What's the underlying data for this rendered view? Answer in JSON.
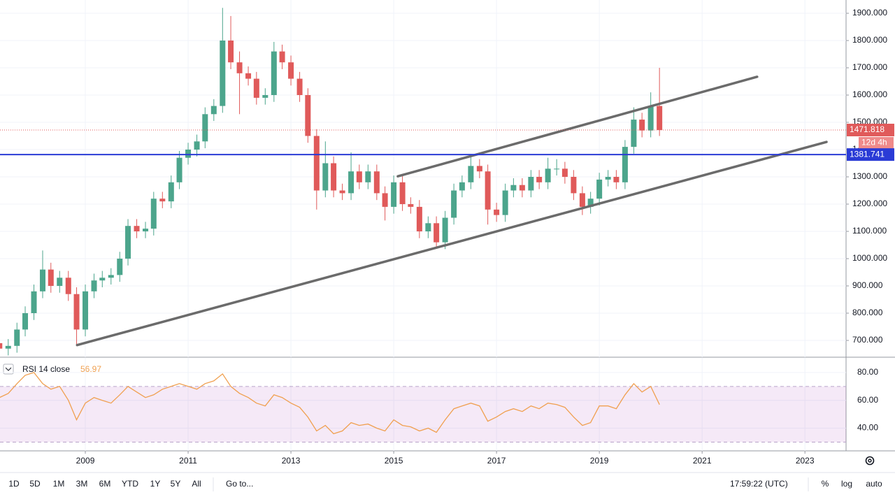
{
  "chart_data": {
    "type": "candlestick",
    "candles": {
      "x": [
        2007.33,
        2007.5,
        2007.67,
        2007.83,
        2008,
        2008.17,
        2008.33,
        2008.5,
        2008.67,
        2008.83,
        2009,
        2009.17,
        2009.33,
        2009.5,
        2009.67,
        2009.83,
        2010,
        2010.17,
        2010.33,
        2010.5,
        2010.67,
        2010.83,
        2011,
        2011.17,
        2011.33,
        2011.5,
        2011.67,
        2011.83,
        2012,
        2012.17,
        2012.33,
        2012.5,
        2012.67,
        2012.83,
        2013,
        2013.17,
        2013.33,
        2013.5,
        2013.67,
        2013.83,
        2014,
        2014.17,
        2014.33,
        2014.5,
        2014.67,
        2014.83,
        2015,
        2015.17,
        2015.33,
        2015.5,
        2015.67,
        2015.83,
        2016,
        2016.17,
        2016.33,
        2016.5,
        2016.67,
        2016.83,
        2017,
        2017.17,
        2017.33,
        2017.5,
        2017.67,
        2017.83,
        2018,
        2018.17,
        2018.33,
        2018.5,
        2018.67,
        2018.83,
        2019,
        2019.17,
        2019.33,
        2019.5,
        2019.67,
        2019.83,
        2020,
        2020.17
      ],
      "open": [
        690,
        670,
        680,
        740,
        800,
        880,
        960,
        900,
        930,
        870,
        740,
        880,
        920,
        930,
        940,
        1000,
        1120,
        1100,
        1110,
        1220,
        1210,
        1280,
        1370,
        1400,
        1430,
        1530,
        1560,
        1800,
        1720,
        1680,
        1660,
        1590,
        1600,
        1760,
        1720,
        1660,
        1600,
        1450,
        1250,
        1350,
        1250,
        1240,
        1320,
        1280,
        1320,
        1240,
        1190,
        1280,
        1200,
        1190,
        1100,
        1130,
        1060,
        1150,
        1250,
        1280,
        1340,
        1320,
        1180,
        1160,
        1250,
        1270,
        1250,
        1300,
        1280,
        1330,
        1330,
        1300,
        1240,
        1190,
        1220,
        1290,
        1300,
        1280,
        1410,
        1510,
        1470,
        1560
      ],
      "high": [
        710,
        705,
        765,
        825,
        905,
        1030,
        985,
        955,
        955,
        895,
        905,
        945,
        955,
        965,
        1025,
        1145,
        1145,
        1135,
        1245,
        1245,
        1305,
        1395,
        1425,
        1455,
        1555,
        1585,
        1920,
        1890,
        1760,
        1705,
        1685,
        1625,
        1795,
        1785,
        1745,
        1685,
        1625,
        1475,
        1430,
        1375,
        1275,
        1390,
        1345,
        1345,
        1345,
        1265,
        1305,
        1305,
        1225,
        1215,
        1155,
        1155,
        1175,
        1275,
        1305,
        1375,
        1365,
        1345,
        1205,
        1275,
        1295,
        1295,
        1325,
        1325,
        1370,
        1365,
        1355,
        1325,
        1265,
        1245,
        1315,
        1325,
        1325,
        1435,
        1555,
        1535,
        1610,
        1700
      ],
      "low": [
        650,
        645,
        655,
        715,
        775,
        855,
        875,
        875,
        845,
        680,
        715,
        855,
        895,
        905,
        915,
        975,
        1075,
        1075,
        1085,
        1185,
        1185,
        1255,
        1345,
        1375,
        1405,
        1505,
        1535,
        1695,
        1530,
        1635,
        1565,
        1565,
        1575,
        1695,
        1635,
        1575,
        1425,
        1180,
        1225,
        1225,
        1215,
        1215,
        1255,
        1255,
        1215,
        1140,
        1165,
        1175,
        1165,
        1075,
        1075,
        1045,
        1035,
        1125,
        1225,
        1255,
        1295,
        1125,
        1135,
        1135,
        1225,
        1225,
        1225,
        1255,
        1255,
        1305,
        1275,
        1215,
        1160,
        1165,
        1195,
        1265,
        1255,
        1255,
        1385,
        1445,
        1445,
        1450
      ],
      "close": [
        670,
        680,
        740,
        800,
        880,
        960,
        900,
        930,
        870,
        740,
        880,
        920,
        930,
        940,
        1000,
        1120,
        1100,
        1110,
        1220,
        1210,
        1280,
        1370,
        1400,
        1430,
        1530,
        1560,
        1800,
        1720,
        1680,
        1660,
        1590,
        1600,
        1760,
        1720,
        1660,
        1600,
        1450,
        1250,
        1350,
        1250,
        1240,
        1320,
        1280,
        1320,
        1240,
        1190,
        1280,
        1200,
        1190,
        1100,
        1130,
        1060,
        1150,
        1250,
        1280,
        1340,
        1320,
        1180,
        1160,
        1250,
        1270,
        1250,
        1300,
        1280,
        1330,
        1330,
        1300,
        1240,
        1190,
        1220,
        1290,
        1300,
        1280,
        1410,
        1510,
        1470,
        1560,
        1471.818
      ]
    },
    "colors": {
      "up": "#4ca58c",
      "down": "#e05a5a"
    },
    "xlim": [
      2007.34,
      2023.8
    ],
    "xticks": [
      2009,
      2011,
      2013,
      2015,
      2017,
      2019,
      2021,
      2023
    ],
    "ylim": [
      638.5,
      1948.7
    ],
    "yticks": [
      {
        "value": 700,
        "label": "700.000"
      },
      {
        "value": 800,
        "label": "800.000"
      },
      {
        "value": 900,
        "label": "900.000"
      },
      {
        "value": 1000,
        "label": "1000.000"
      },
      {
        "value": 1100,
        "label": "1100.000"
      },
      {
        "value": 1200,
        "label": "1200.000"
      },
      {
        "value": 1300,
        "label": "1300.000"
      },
      {
        "value": 1400,
        "label": "1400.000"
      },
      {
        "value": 1500,
        "label": "1500.000"
      },
      {
        "value": 1600,
        "label": "1600.000"
      },
      {
        "value": 1700,
        "label": "1700.000"
      },
      {
        "value": 1800,
        "label": "1800.000"
      },
      {
        "value": 1900,
        "label": "1900.000"
      }
    ],
    "grid": true,
    "countdown": "12d 4h",
    "hline": {
      "value": 1381.741,
      "color": "#2a3bd6"
    },
    "trendlines": [
      {
        "x": [
          2008.84,
          2023.42
        ],
        "y": [
          683,
          1428
        ],
        "color": "#6b6b6b"
      },
      {
        "x": [
          2015.08,
          2022.07
        ],
        "y": [
          1302,
          1667
        ],
        "color": "#6b6b6b"
      }
    ],
    "rsi": {
      "name": "RSI 14 close",
      "color": "#f0a050",
      "values": [
        62,
        65,
        72,
        78,
        80,
        72,
        68,
        70,
        60,
        46,
        58,
        62,
        60,
        58,
        64,
        70,
        66,
        62,
        64,
        68,
        70,
        72,
        70,
        68,
        72,
        74,
        79,
        70,
        65,
        62,
        58,
        56,
        64,
        62,
        58,
        55,
        48,
        38,
        42,
        36,
        38,
        44,
        42,
        43,
        40,
        38,
        46,
        42,
        41,
        38,
        40,
        37,
        46,
        54,
        56,
        58,
        56,
        45,
        48,
        52,
        54,
        52,
        56,
        54,
        58,
        57,
        55,
        48,
        42,
        44,
        56,
        56,
        54,
        64,
        72,
        66,
        70,
        56.97
      ],
      "ylim": [
        23.7,
        90.5
      ],
      "yticks": [
        {
          "value": 40,
          "label": "40.00"
        },
        {
          "value": 60,
          "label": "60.00"
        },
        {
          "value": 80,
          "label": "80.00"
        }
      ],
      "band": [
        30,
        70
      ]
    },
    "toolbar": {
      "ranges": [
        "1D",
        "5D",
        "1M",
        "3M",
        "6M",
        "YTD",
        "1Y",
        "5Y",
        "All"
      ],
      "goto": "Go to...",
      "clock": "17:59:22 (UTC)",
      "options": [
        "%",
        "log",
        "auto"
      ]
    }
  }
}
